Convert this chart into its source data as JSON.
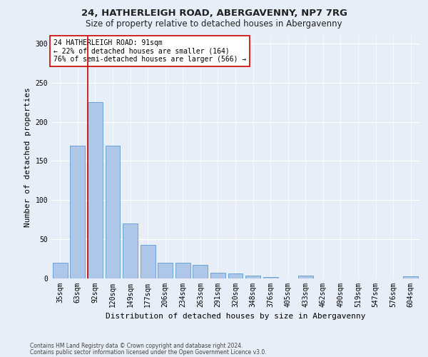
{
  "title1": "24, HATHERLEIGH ROAD, ABERGAVENNY, NP7 7RG",
  "title2": "Size of property relative to detached houses in Abergavenny",
  "xlabel": "Distribution of detached houses by size in Abergavenny",
  "ylabel": "Number of detached properties",
  "categories": [
    "35sqm",
    "63sqm",
    "92sqm",
    "120sqm",
    "149sqm",
    "177sqm",
    "206sqm",
    "234sqm",
    "263sqm",
    "291sqm",
    "320sqm",
    "348sqm",
    "376sqm",
    "405sqm",
    "433sqm",
    "462sqm",
    "490sqm",
    "519sqm",
    "547sqm",
    "576sqm",
    "604sqm"
  ],
  "values": [
    20,
    170,
    225,
    170,
    70,
    43,
    20,
    20,
    17,
    7,
    6,
    4,
    2,
    0,
    4,
    0,
    0,
    0,
    0,
    0,
    3
  ],
  "bar_color": "#aec6e8",
  "bar_edge_color": "#5b9bd5",
  "highlight_index": 2,
  "highlight_line_color": "#cc0000",
  "annotation_text": "24 HATHERLEIGH ROAD: 91sqm\n← 22% of detached houses are smaller (164)\n76% of semi-detached houses are larger (566) →",
  "annotation_box_color": "#ffffff",
  "annotation_box_edge_color": "#cc0000",
  "footer1": "Contains HM Land Registry data © Crown copyright and database right 2024.",
  "footer2": "Contains public sector information licensed under the Open Government Licence v3.0.",
  "ylim": [
    0,
    310
  ],
  "yticks": [
    0,
    50,
    100,
    150,
    200,
    250,
    300
  ],
  "bg_color": "#e8eef7",
  "grid_color": "#ffffff",
  "title1_fontsize": 9.5,
  "title2_fontsize": 8.5,
  "axis_label_fontsize": 8.0,
  "tick_fontsize": 7.0,
  "annotation_fontsize": 7.0,
  "footer_fontsize": 5.5
}
